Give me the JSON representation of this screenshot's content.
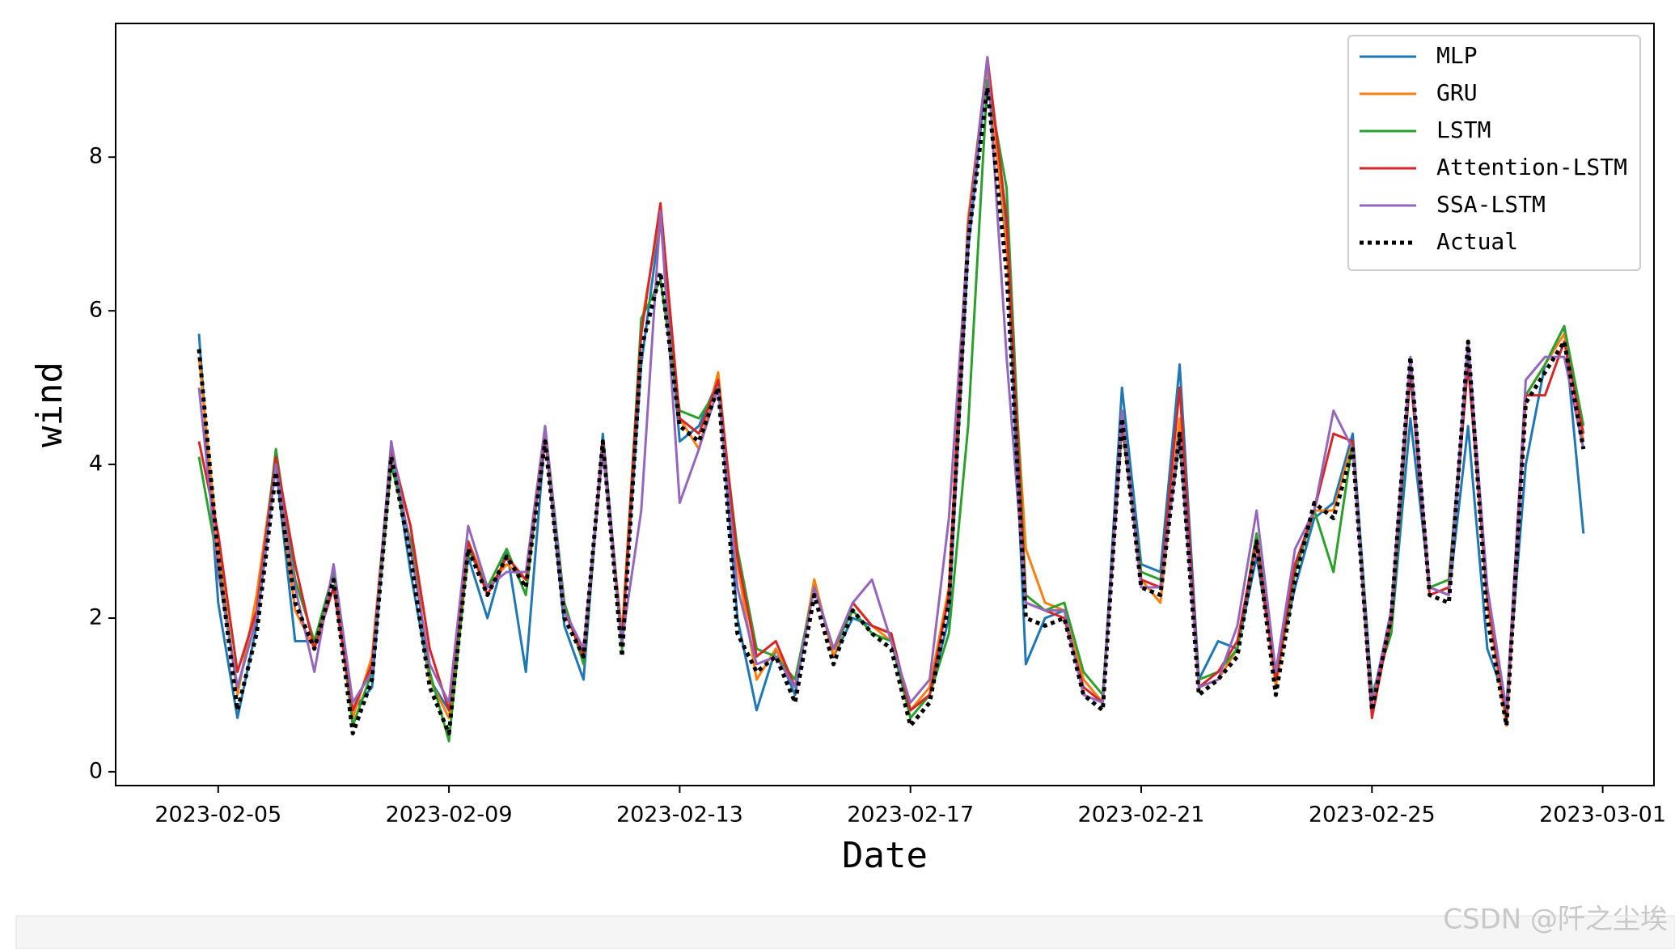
{
  "chart_data": {
    "type": "line",
    "xlabel": "Date",
    "ylabel": "wind",
    "watermark": "CSDN @阡之尘埃",
    "legend": "upper right",
    "grid": false,
    "x": [
      "2023-02-04 16:00",
      "2023-02-05 00:00",
      "2023-02-05 08:00",
      "2023-02-05 16:00",
      "2023-02-06 00:00",
      "2023-02-06 08:00",
      "2023-02-06 16:00",
      "2023-02-07 00:00",
      "2023-02-07 08:00",
      "2023-02-07 16:00",
      "2023-02-08 00:00",
      "2023-02-08 08:00",
      "2023-02-08 16:00",
      "2023-02-09 00:00",
      "2023-02-09 08:00",
      "2023-02-09 16:00",
      "2023-02-10 00:00",
      "2023-02-10 08:00",
      "2023-02-10 16:00",
      "2023-02-11 00:00",
      "2023-02-11 08:00",
      "2023-02-11 16:00",
      "2023-02-12 00:00",
      "2023-02-12 08:00",
      "2023-02-12 16:00",
      "2023-02-13 00:00",
      "2023-02-13 08:00",
      "2023-02-13 16:00",
      "2023-02-14 00:00",
      "2023-02-14 08:00",
      "2023-02-14 16:00",
      "2023-02-15 00:00",
      "2023-02-15 08:00",
      "2023-02-15 16:00",
      "2023-02-16 00:00",
      "2023-02-16 08:00",
      "2023-02-16 16:00",
      "2023-02-17 00:00",
      "2023-02-17 08:00",
      "2023-02-17 16:00",
      "2023-02-18 00:00",
      "2023-02-18 08:00",
      "2023-02-18 16:00",
      "2023-02-19 00:00",
      "2023-02-19 08:00",
      "2023-02-19 16:00",
      "2023-02-20 00:00",
      "2023-02-20 08:00",
      "2023-02-20 16:00",
      "2023-02-21 00:00",
      "2023-02-21 08:00",
      "2023-02-21 16:00",
      "2023-02-22 00:00",
      "2023-02-22 08:00",
      "2023-02-22 16:00",
      "2023-02-23 00:00",
      "2023-02-23 08:00",
      "2023-02-23 16:00",
      "2023-02-24 00:00",
      "2023-02-24 08:00",
      "2023-02-24 16:00",
      "2023-02-25 00:00",
      "2023-02-25 08:00",
      "2023-02-25 16:00",
      "2023-02-26 00:00",
      "2023-02-26 08:00",
      "2023-02-26 16:00",
      "2023-02-27 00:00",
      "2023-02-27 08:00",
      "2023-02-27 16:00",
      "2023-02-28 00:00",
      "2023-02-28 08:00",
      "2023-02-28 16:00"
    ],
    "series": [
      {
        "name": "MLP",
        "color": "#1f77b4",
        "values": [
          5.7,
          2.2,
          0.7,
          1.9,
          4.0,
          1.7,
          1.7,
          2.4,
          0.8,
          1.1,
          4.3,
          2.6,
          1.2,
          0.8,
          2.8,
          2.0,
          2.9,
          1.3,
          4.4,
          1.9,
          1.2,
          4.4,
          1.7,
          5.3,
          7.2,
          4.3,
          4.5,
          5.1,
          2.0,
          0.8,
          1.6,
          1.0,
          2.5,
          1.5,
          2.0,
          1.9,
          1.8,
          0.8,
          1.0,
          2.0,
          6.8,
          9.2,
          7.0,
          1.4,
          2.0,
          2.1,
          1.2,
          0.9,
          5.0,
          2.7,
          2.6,
          5.3,
          1.2,
          1.7,
          1.6,
          2.8,
          1.3,
          2.4,
          3.3,
          3.5,
          4.4,
          1.0,
          1.8,
          4.6,
          2.4,
          2.3,
          4.5,
          1.6,
          0.9,
          4.0,
          5.3,
          5.8,
          3.1
        ]
      },
      {
        "name": "GRU",
        "color": "#ff7f0e",
        "values": [
          5.4,
          2.9,
          1.0,
          2.3,
          4.1,
          2.1,
          1.6,
          2.6,
          0.7,
          1.5,
          4.2,
          3.2,
          1.2,
          0.7,
          3.0,
          2.4,
          2.7,
          2.5,
          4.4,
          2.1,
          1.5,
          4.2,
          1.8,
          5.8,
          7.3,
          4.6,
          4.2,
          5.2,
          2.7,
          1.2,
          1.6,
          1.1,
          2.5,
          1.5,
          2.2,
          1.9,
          1.7,
          0.8,
          1.1,
          2.4,
          7.2,
          9.2,
          6.8,
          2.9,
          2.2,
          2.1,
          1.2,
          0.9,
          4.7,
          2.5,
          2.2,
          4.6,
          1.1,
          1.2,
          1.6,
          3.1,
          1.1,
          2.6,
          3.4,
          3.4,
          4.3,
          0.9,
          1.9,
          5.3,
          2.4,
          2.3,
          5.4,
          2.2,
          0.6,
          4.9,
          5.3,
          5.7,
          4.3
        ]
      },
      {
        "name": "LSTM",
        "color": "#2ca02c",
        "values": [
          4.1,
          2.7,
          1.1,
          2.0,
          4.2,
          2.5,
          1.7,
          2.6,
          0.6,
          1.3,
          4.0,
          3.0,
          1.3,
          0.4,
          2.9,
          2.4,
          2.9,
          2.3,
          4.5,
          2.2,
          1.4,
          4.3,
          1.6,
          5.9,
          6.4,
          4.7,
          4.6,
          5.0,
          2.9,
          1.6,
          1.5,
          1.2,
          2.4,
          1.6,
          2.1,
          1.8,
          1.7,
          0.7,
          1.0,
          1.8,
          4.5,
          9.0,
          7.6,
          2.3,
          2.1,
          2.2,
          1.3,
          1.0,
          4.5,
          2.6,
          2.5,
          4.3,
          1.2,
          1.3,
          1.6,
          3.1,
          1.2,
          2.6,
          3.4,
          2.6,
          4.3,
          1.0,
          1.8,
          5.2,
          2.4,
          2.5,
          5.4,
          2.3,
          0.8,
          4.9,
          5.3,
          5.8,
          4.5
        ]
      },
      {
        "name": "Attention-LSTM",
        "color": "#d62728",
        "values": [
          4.3,
          3.1,
          1.3,
          2.1,
          4.1,
          2.7,
          1.6,
          2.4,
          0.8,
          1.4,
          4.2,
          3.2,
          1.6,
          0.8,
          3.0,
          2.3,
          2.8,
          2.5,
          4.4,
          2.1,
          1.5,
          4.3,
          1.7,
          5.7,
          7.4,
          4.6,
          4.4,
          5.1,
          2.8,
          1.5,
          1.7,
          1.1,
          2.4,
          1.6,
          2.2,
          1.9,
          1.8,
          0.8,
          1.0,
          2.3,
          7.1,
          9.3,
          7.2,
          2.2,
          2.1,
          2.0,
          1.1,
          0.9,
          4.6,
          2.5,
          2.4,
          5.0,
          1.1,
          1.3,
          1.7,
          3.0,
          1.2,
          2.7,
          3.4,
          4.4,
          4.3,
          0.7,
          2.0,
          5.2,
          2.3,
          2.4,
          5.3,
          2.3,
          0.7,
          4.9,
          4.9,
          5.6,
          4.4
        ]
      },
      {
        "name": "SSA-LSTM",
        "color": "#9467bd",
        "values": [
          5.0,
          2.6,
          1.1,
          2.0,
          4.0,
          2.4,
          1.3,
          2.7,
          0.9,
          1.3,
          4.3,
          2.9,
          1.4,
          0.9,
          3.2,
          2.4,
          2.6,
          2.6,
          4.5,
          2.1,
          1.6,
          4.2,
          1.7,
          3.4,
          7.3,
          3.5,
          4.2,
          5.0,
          2.4,
          1.4,
          1.5,
          1.1,
          2.4,
          1.6,
          2.2,
          2.5,
          1.7,
          0.9,
          1.2,
          3.3,
          7.0,
          9.3,
          5.4,
          2.2,
          2.1,
          2.1,
          1.0,
          0.9,
          4.7,
          2.4,
          2.4,
          4.4,
          1.1,
          1.2,
          1.9,
          3.4,
          1.3,
          2.9,
          3.4,
          4.7,
          4.2,
          0.9,
          2.1,
          5.4,
          2.4,
          2.3,
          5.6,
          2.4,
          0.8,
          5.1,
          5.4,
          5.4,
          4.2
        ]
      },
      {
        "name": "Actual",
        "color": "#000000",
        "dotted": true,
        "values": [
          5.5,
          2.8,
          0.8,
          1.8,
          3.9,
          2.2,
          1.6,
          2.5,
          0.5,
          1.2,
          4.1,
          2.8,
          1.1,
          0.5,
          2.9,
          2.3,
          2.8,
          2.4,
          4.3,
          2.0,
          1.5,
          4.3,
          1.5,
          5.5,
          6.5,
          4.5,
          4.3,
          5.0,
          1.8,
          1.3,
          1.5,
          0.9,
          2.3,
          1.4,
          2.1,
          1.8,
          1.6,
          0.6,
          0.9,
          2.2,
          6.9,
          8.9,
          6.5,
          2.0,
          1.9,
          2.0,
          1.0,
          0.8,
          4.6,
          2.4,
          2.3,
          4.4,
          1.0,
          1.2,
          1.5,
          3.0,
          1.0,
          2.5,
          3.5,
          3.3,
          4.2,
          0.8,
          2.0,
          5.4,
          2.3,
          2.2,
          5.6,
          2.0,
          0.6,
          4.8,
          5.2,
          5.6,
          4.2
        ]
      }
    ],
    "xlim": [
      "2023-02-03 05:20",
      "2023-03-01 21:20"
    ],
    "xticks": [
      "2023-02-05",
      "2023-02-09",
      "2023-02-13",
      "2023-02-17",
      "2023-02-21",
      "2023-02-25",
      "2023-03-01"
    ],
    "ylim": [
      -0.18,
      9.74
    ],
    "yticks": [
      0,
      2,
      4,
      6,
      8
    ]
  }
}
